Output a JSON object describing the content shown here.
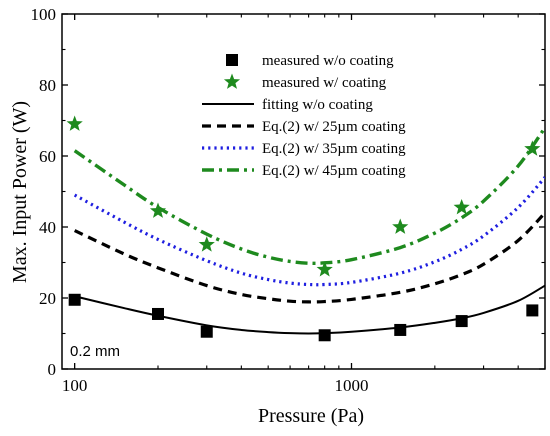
{
  "chart_data": {
    "type": "scatter",
    "xlabel": "Pressure (Pa)",
    "ylabel": "Max. Input Power (W)",
    "xscale": "log",
    "xlim": [
      90,
      5000
    ],
    "ylim": [
      0,
      100
    ],
    "x_tick_labels": [
      {
        "value": 100,
        "label": "100"
      },
      {
        "value": 1000,
        "label": "1000"
      }
    ],
    "y_ticks": [
      0,
      20,
      40,
      60,
      80,
      100
    ],
    "legend_position": "top-center",
    "annotation": "0.2 mm",
    "colors": {
      "black": "#000000",
      "green": "#1e8a1e",
      "blue": "#1f1fe0"
    },
    "series": [
      {
        "name": "measured w/o coating",
        "kind": "marker",
        "marker": "square",
        "color": "#000000",
        "x": [
          100,
          200,
          300,
          800,
          1500,
          2500,
          4500
        ],
        "y": [
          19.5,
          15.5,
          10.5,
          9.5,
          11,
          13.5,
          16.5
        ]
      },
      {
        "name": "measured w/ coating",
        "kind": "marker",
        "marker": "star",
        "color": "#1e8a1e",
        "x": [
          100,
          200,
          300,
          800,
          1500,
          2500,
          4500
        ],
        "y": [
          69,
          44.5,
          35,
          28,
          40,
          45.5,
          62
        ]
      },
      {
        "name": "fitting w/o coating",
        "kind": "line",
        "dash": "solid",
        "color": "#000000",
        "x": [
          100,
          150,
          200,
          300,
          400,
          500,
          600,
          700,
          800,
          1000,
          1500,
          2000,
          2500,
          3000,
          4000,
          5000
        ],
        "y": [
          20.5,
          17.2,
          15,
          12.3,
          11,
          10.4,
          10.1,
          10.0,
          10.1,
          10.5,
          11.7,
          13.0,
          14.3,
          15.8,
          19.2,
          23.5
        ]
      },
      {
        "name": "Eq.(2) w/ 25µm coating",
        "kind": "line",
        "dash": "dash",
        "color": "#000000",
        "x": [
          100,
          150,
          200,
          300,
          400,
          500,
          600,
          700,
          800,
          1000,
          1500,
          2000,
          2500,
          3000,
          4000,
          5000
        ],
        "y": [
          39,
          32.5,
          28.5,
          23.5,
          21,
          19.8,
          19.1,
          18.9,
          19.0,
          19.6,
          21.6,
          24.0,
          26.6,
          29.5,
          36.2,
          44
        ]
      },
      {
        "name": "Eq.(2) w/ 35µm coating",
        "kind": "line",
        "dash": "dot",
        "color": "#1f1fe0",
        "x": [
          100,
          150,
          200,
          300,
          400,
          500,
          600,
          700,
          800,
          1000,
          1500,
          2000,
          2500,
          3000,
          4000,
          5000
        ],
        "y": [
          49,
          41.5,
          36.5,
          30.5,
          27,
          25.2,
          24.2,
          23.8,
          23.8,
          24.4,
          27.0,
          30.2,
          33.7,
          37.5,
          45.5,
          54
        ]
      },
      {
        "name": "Eq.(2) w/ 45µm coating",
        "kind": "line",
        "dash": "dashdot",
        "color": "#1e8a1e",
        "x": [
          100,
          150,
          200,
          300,
          400,
          500,
          600,
          700,
          800,
          1000,
          1500,
          2000,
          2500,
          3000,
          4000,
          5000
        ],
        "y": [
          61.5,
          52,
          45.5,
          38,
          33.8,
          31.5,
          30.3,
          29.8,
          29.9,
          30.8,
          34.2,
          38.3,
          42.6,
          47.3,
          57.2,
          68
        ]
      }
    ]
  }
}
